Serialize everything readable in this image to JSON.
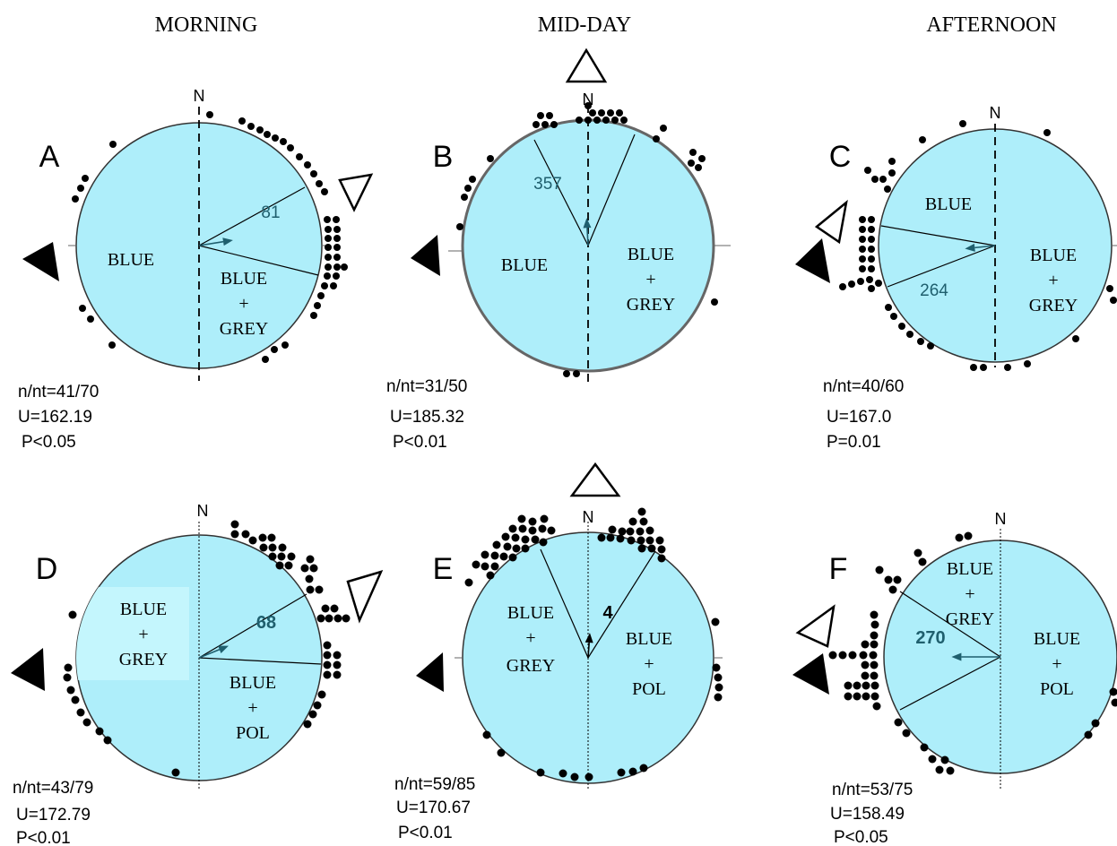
{
  "columns": [
    "MORNING",
    "MID-DAY",
    "AFTERNOON"
  ],
  "north_label": "N",
  "colors": {
    "circle_fill": "#aeeefa",
    "arrow": "#1f5f6e",
    "dot": "#000000",
    "outline": "#333333"
  },
  "panels": [
    {
      "letter": "A",
      "n": "n/nt=41/70",
      "u": "U=162.19",
      "p": "P<0.05",
      "mean_deg": 81,
      "mean_label": "81",
      "mean_vector_length": 0.28,
      "sectors": [
        {
          "l1": "BLUE",
          "l2": "",
          "l3": ""
        },
        {
          "l1": "BLUE",
          "l2": "+",
          "l3": "GREY"
        }
      ]
    },
    {
      "letter": "B",
      "n": "n/nt=31/50",
      "u": "U=185.32",
      "p": "P<0.01",
      "mean_deg": 357,
      "mean_label": "357",
      "mean_vector_length": 0.22,
      "sectors": [
        {
          "l1": "BLUE",
          "l2": "",
          "l3": ""
        },
        {
          "l1": "BLUE",
          "l2": "+",
          "l3": "GREY"
        }
      ]
    },
    {
      "letter": "C",
      "n": "n/nt=40/60",
      "u": "U=167.0",
      "p": "P=0.01",
      "mean_deg": 264,
      "mean_label": "264",
      "mean_vector_length": 0.26,
      "sectors": [
        {
          "l1": "BLUE",
          "l2": "",
          "l3": ""
        },
        {
          "l1": "BLUE",
          "l2": "+",
          "l3": "GREY"
        }
      ]
    },
    {
      "letter": "D",
      "n": "n/nt=43/79",
      "u": "U=172.79",
      "p": "P<0.01",
      "mean_deg": 68,
      "mean_label": "68",
      "mean_vector_length": 0.26,
      "sectors": [
        {
          "l1": "BLUE",
          "l2": "+",
          "l3": "GREY"
        },
        {
          "l1": "BLUE",
          "l2": "+",
          "l3": "POL"
        }
      ]
    },
    {
      "letter": "E",
      "n": "n/nt=59/85",
      "u": "U=170.67",
      "p": "P<0.01",
      "mean_deg": 4,
      "mean_label": "4",
      "mean_vector_length": 0.2,
      "sectors": [
        {
          "l1": "BLUE",
          "l2": "+",
          "l3": "GREY"
        },
        {
          "l1": "BLUE",
          "l2": "+",
          "l3": "POL"
        }
      ]
    },
    {
      "letter": "F",
      "n": "n/nt=53/75",
      "u": "U=158.49",
      "p": "P<0.05",
      "mean_deg": 270,
      "mean_label": "270",
      "mean_vector_length": 0.42,
      "sectors": [
        {
          "l1": "BLUE",
          "l2": "+",
          "l3": "GREY"
        },
        {
          "l1": "BLUE",
          "l2": "+",
          "l3": "POL"
        }
      ]
    }
  ]
}
